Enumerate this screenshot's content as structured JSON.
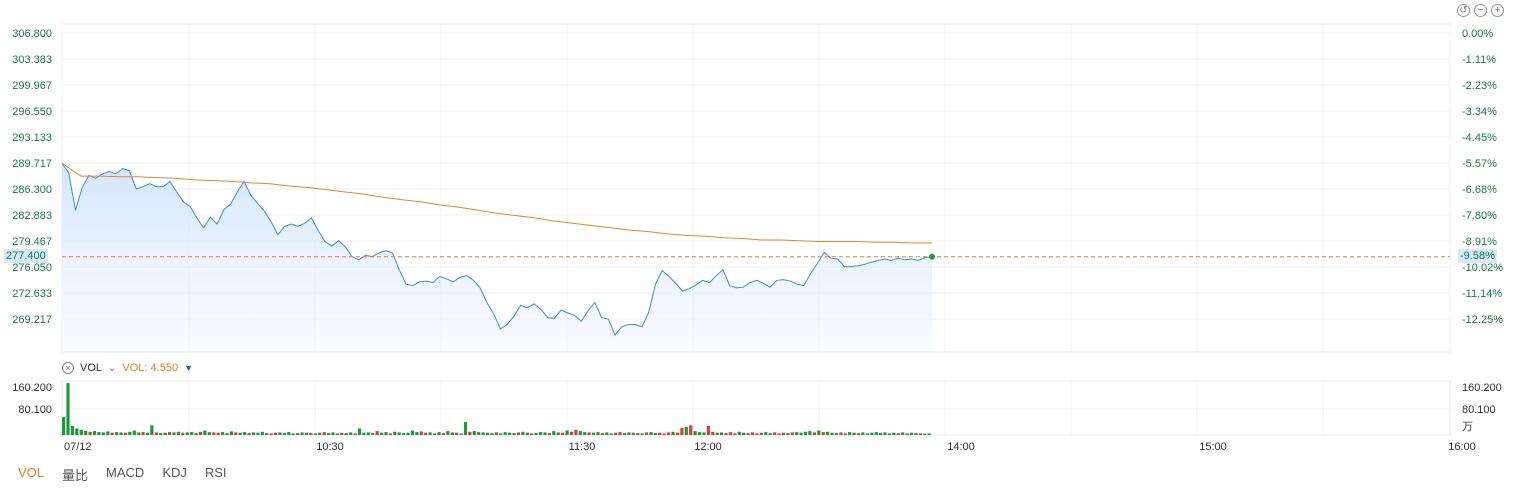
{
  "toolbar": {
    "reset_icon": "undo-icon",
    "zoom_out_icon": "zoom-out-icon",
    "zoom_in_icon": "zoom-in-icon"
  },
  "price_axis_labels": [
    "306.800",
    "303.383",
    "299.967",
    "296.550",
    "293.133",
    "289.717",
    "286.300",
    "282.883",
    "279.467",
    "276.050",
    "272.633",
    "269.217"
  ],
  "pct_axis_labels": [
    "0.00%",
    "-1.11%",
    "-2.23%",
    "-3.34%",
    "-4.45%",
    "-5.57%",
    "-6.68%",
    "-7.80%",
    "-8.91%",
    "-10.02%",
    "-11.14%",
    "-12.25%"
  ],
  "current_price_tag": "277.400",
  "current_pct_tag": "-9.58%",
  "time_labels": [
    "07/12",
    "10:30",
    "11:30",
    "12:00",
    "14:00",
    "15:00",
    "16:00"
  ],
  "vol_axis_labels": [
    "160.200",
    "80.100"
  ],
  "vol_axis_unit": "万",
  "vol_indicator": {
    "name": "VOL",
    "value_label": "VOL: 4.550"
  },
  "bottom_tabs": [
    "VOL",
    "量比",
    "MACD",
    "KDJ",
    "RSI"
  ],
  "active_tab": "VOL",
  "colors": {
    "price_line": "#3a8ee6",
    "avg_line": "#e8862b",
    "up": "#e03a3a",
    "down": "#1b9a3a",
    "accent": "#f27a22",
    "axis_text": "#1b7d43"
  },
  "chart_data": {
    "type": "line",
    "x_axis": "time",
    "ylim": [
      266.0,
      306.8
    ],
    "reference_price": 306.8,
    "current_price": 277.4,
    "price_series": [
      289.7,
      288.4,
      283.5,
      286.5,
      288.1,
      287.7,
      288.3,
      288.6,
      288.3,
      289.0,
      288.7,
      286.3,
      286.6,
      287.0,
      286.6,
      286.6,
      287.3,
      285.9,
      284.6,
      284.0,
      282.5,
      281.2,
      282.6,
      281.7,
      283.6,
      284.3,
      285.9,
      287.3,
      285.5,
      284.4,
      283.4,
      282.0,
      280.3,
      281.4,
      281.7,
      281.4,
      281.8,
      282.5,
      280.8,
      279.4,
      278.8,
      279.5,
      278.7,
      277.4,
      277.0,
      277.6,
      277.4,
      277.9,
      278.2,
      277.9,
      275.7,
      273.8,
      273.6,
      274.1,
      274.2,
      274.0,
      274.8,
      274.5,
      274.1,
      274.7,
      274.9,
      274.3,
      273.3,
      271.4,
      269.9,
      267.9,
      268.5,
      269.6,
      271.0,
      270.7,
      271.2,
      270.5,
      269.4,
      269.3,
      270.4,
      270.0,
      269.7,
      268.9,
      270.3,
      271.4,
      269.4,
      269.2,
      267.1,
      268.2,
      268.5,
      268.5,
      268.2,
      270.1,
      273.8,
      275.6,
      274.8,
      273.9,
      272.9,
      273.2,
      273.7,
      274.3,
      274.0,
      274.9,
      275.7,
      273.6,
      273.3,
      273.4,
      274.0,
      274.3,
      273.9,
      273.4,
      274.3,
      274.4,
      274.2,
      273.8,
      273.6,
      275.2,
      276.5,
      278.0,
      277.2,
      277.1,
      276.1,
      276.1,
      276.2,
      276.4,
      276.7,
      276.9,
      277.1,
      276.9,
      277.2,
      277.0,
      277.1,
      276.9,
      277.3,
      277.4
    ],
    "avg_series": [
      289.7,
      288.0,
      288.0,
      287.9,
      287.9,
      287.8,
      287.7,
      287.5,
      287.4,
      287.3,
      287.1,
      287.0,
      286.7,
      286.5,
      286.2,
      285.9,
      285.6,
      285.2,
      284.9,
      284.6,
      284.2,
      283.9,
      283.5,
      283.1,
      282.8,
      282.5,
      282.1,
      281.8,
      281.5,
      281.2,
      280.9,
      280.7,
      280.4,
      280.2,
      280.1,
      279.9,
      279.8,
      279.6,
      279.6,
      279.5,
      279.4,
      279.4,
      279.4,
      279.3,
      279.3,
      279.2,
      279.2
    ],
    "total_points": 200,
    "volume": {
      "unit": "万",
      "ylim": [
        0,
        160.2
      ],
      "last_value": 4.55,
      "values": [
        55,
        160,
        28,
        20,
        16,
        13,
        10,
        12,
        9,
        8,
        11,
        7,
        9,
        8,
        7,
        10,
        14,
        8,
        9,
        7,
        30,
        8,
        6,
        7,
        9,
        8,
        10,
        7,
        8,
        9,
        6,
        10,
        14,
        9,
        8,
        7,
        9,
        6,
        11,
        8,
        7,
        9,
        6,
        8,
        7,
        10,
        6,
        5,
        7,
        8,
        6,
        9,
        5,
        6,
        8,
        7,
        6,
        5,
        7,
        9,
        6,
        8,
        5,
        7,
        6,
        8,
        5,
        20,
        7,
        8,
        6,
        12,
        7,
        9,
        5,
        10,
        8,
        6,
        7,
        14,
        9,
        11,
        7,
        8,
        5,
        9,
        6,
        12,
        8,
        7,
        5,
        40,
        10,
        12,
        9,
        8,
        7,
        6,
        8,
        5,
        9,
        7,
        6,
        8,
        10,
        7,
        5,
        6,
        9,
        8,
        6,
        12,
        8,
        7,
        14,
        10,
        16,
        12,
        9,
        8,
        7,
        9,
        6,
        8,
        5,
        7,
        9,
        6,
        8,
        7,
        6,
        5,
        8,
        9,
        6,
        7,
        5,
        8,
        10,
        7,
        22,
        25,
        30,
        12,
        9,
        8,
        28,
        10,
        7,
        8,
        6,
        9,
        5,
        10,
        7,
        6,
        8,
        5,
        7,
        9,
        6,
        8,
        5,
        7,
        6,
        8,
        9,
        7,
        10,
        12,
        8,
        14,
        9,
        10,
        7,
        6,
        8,
        5,
        9,
        7,
        6,
        8,
        5,
        7,
        9,
        6,
        8,
        5,
        7,
        6,
        8,
        5,
        7,
        6,
        5,
        4,
        5
      ],
      "directions": "dddddduddddudduddduddudduddudddudduuddduddudddduudddduddudduddduddudddduddudddddduudddudduddudddddudddduddudddudduduudduddudduudduddudduuuduududdduudduuudduuuudduuududdddududdduuddudd"
    }
  }
}
